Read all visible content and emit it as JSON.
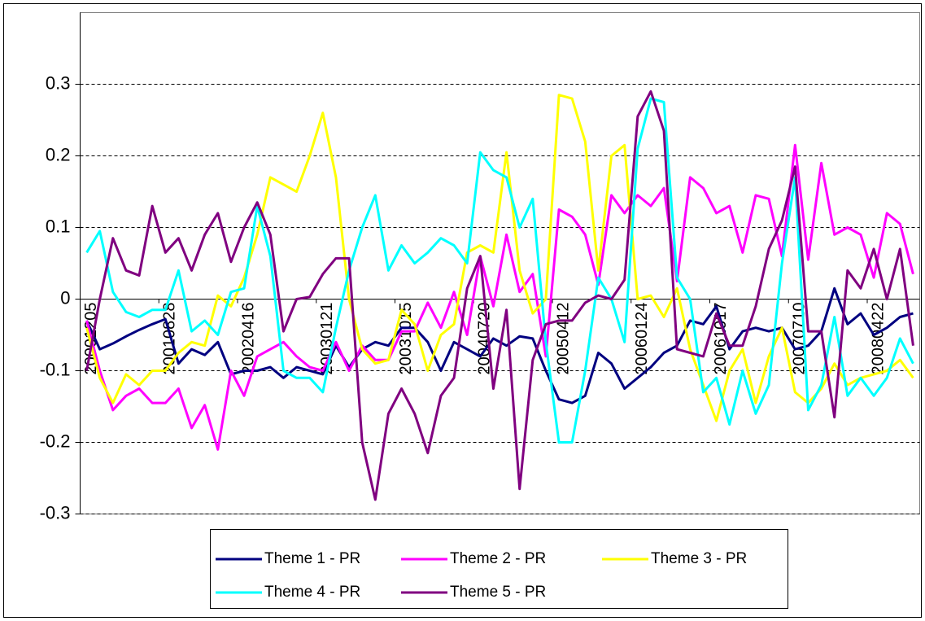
{
  "chart_data": {
    "type": "line",
    "categories": [
      "20001205",
      null,
      null,
      null,
      null,
      null,
      "20010828",
      null,
      null,
      null,
      null,
      null,
      "20020416",
      null,
      null,
      null,
      null,
      null,
      "20030121",
      null,
      null,
      null,
      null,
      null,
      "20031015",
      null,
      null,
      null,
      null,
      null,
      "20040720",
      null,
      null,
      null,
      null,
      null,
      "20050412",
      null,
      null,
      null,
      null,
      null,
      "20060124",
      null,
      null,
      null,
      null,
      null,
      "20061017",
      null,
      null,
      null,
      null,
      null,
      "20070710",
      null,
      null,
      null,
      null,
      null,
      "20080422",
      null,
      null,
      null
    ],
    "series": [
      {
        "name": "Theme 1 - PR",
        "color": "#000080",
        "values": [
          -0.03,
          -0.07,
          -0.062,
          -0.052,
          -0.043,
          -0.035,
          -0.028,
          -0.09,
          -0.07,
          -0.078,
          -0.06,
          -0.105,
          -0.1,
          -0.1,
          -0.095,
          -0.11,
          -0.095,
          -0.1,
          -0.105,
          -0.065,
          -0.095,
          -0.07,
          -0.06,
          -0.065,
          -0.04,
          -0.04,
          -0.06,
          -0.1,
          -0.06,
          -0.07,
          -0.08,
          -0.055,
          -0.065,
          -0.052,
          -0.055,
          -0.1,
          -0.14,
          -0.145,
          -0.135,
          -0.075,
          -0.09,
          -0.125,
          -0.11,
          -0.095,
          -0.075,
          -0.065,
          -0.03,
          -0.035,
          -0.01,
          -0.07,
          -0.045,
          -0.04,
          -0.045,
          -0.04,
          -0.07,
          -0.065,
          -0.045,
          0.015,
          -0.035,
          -0.02,
          -0.05,
          -0.04,
          -0.025,
          -0.02
        ]
      },
      {
        "name": "Theme 2 - PR",
        "color": "#ff00ff",
        "values": [
          -0.03,
          -0.1,
          -0.155,
          -0.135,
          -0.125,
          -0.145,
          -0.145,
          -0.125,
          -0.18,
          -0.148,
          -0.21,
          -0.1,
          -0.135,
          -0.08,
          -0.07,
          -0.06,
          -0.08,
          -0.095,
          -0.1,
          -0.06,
          -0.1,
          -0.065,
          -0.085,
          -0.085,
          -0.045,
          -0.045,
          -0.005,
          -0.04,
          0.01,
          -0.05,
          0.06,
          -0.01,
          0.09,
          0.01,
          0.035,
          -0.08,
          0.125,
          0.115,
          0.09,
          0.02,
          0.145,
          0.12,
          0.145,
          0.13,
          0.155,
          0.025,
          0.17,
          0.155,
          0.12,
          0.13,
          0.065,
          0.145,
          0.14,
          0.06,
          0.215,
          0.055,
          0.19,
          0.09,
          0.1,
          0.09,
          0.03,
          0.12,
          0.105,
          0.035
        ]
      },
      {
        "name": "Theme 3 - PR",
        "color": "#ffff00",
        "values": [
          -0.04,
          -0.11,
          -0.145,
          -0.105,
          -0.12,
          -0.1,
          -0.1,
          -0.075,
          -0.06,
          -0.065,
          0.005,
          -0.01,
          0.03,
          0.09,
          0.17,
          0.16,
          0.15,
          0.2,
          0.26,
          0.17,
          0.0,
          -0.07,
          -0.09,
          -0.085,
          -0.015,
          -0.035,
          -0.1,
          -0.05,
          -0.035,
          0.065,
          0.075,
          0.065,
          0.205,
          0.04,
          -0.02,
          0.0,
          0.285,
          0.28,
          0.22,
          0.04,
          0.2,
          0.215,
          0.0,
          0.005,
          -0.025,
          0.015,
          -0.07,
          -0.12,
          -0.17,
          -0.1,
          -0.07,
          -0.145,
          -0.08,
          -0.04,
          -0.13,
          -0.145,
          -0.125,
          -0.09,
          -0.12,
          -0.11,
          -0.105,
          -0.1,
          -0.085,
          -0.11
        ]
      },
      {
        "name": "Theme 4 - PR",
        "color": "#00ffff",
        "values": [
          0.065,
          0.095,
          0.01,
          -0.018,
          -0.025,
          -0.015,
          -0.015,
          0.04,
          -0.045,
          -0.03,
          -0.05,
          0.01,
          0.015,
          0.13,
          0.06,
          -0.1,
          -0.11,
          -0.11,
          -0.13,
          -0.04,
          0.04,
          0.1,
          0.145,
          0.04,
          0.075,
          0.05,
          0.065,
          0.085,
          0.075,
          0.05,
          0.205,
          0.18,
          0.17,
          0.1,
          0.14,
          -0.06,
          -0.2,
          -0.2,
          -0.1,
          0.03,
          0.0,
          -0.06,
          0.21,
          0.28,
          0.275,
          0.03,
          0.0,
          -0.13,
          -0.11,
          -0.175,
          -0.1,
          -0.16,
          -0.12,
          0.05,
          0.17,
          -0.155,
          -0.12,
          -0.025,
          -0.135,
          -0.11,
          -0.135,
          -0.11,
          -0.055,
          -0.09
        ]
      },
      {
        "name": "Theme 5 - PR",
        "color": "#800080",
        "values": [
          -0.1,
          0.0,
          0.085,
          0.04,
          0.033,
          0.13,
          0.065,
          0.085,
          0.04,
          0.09,
          0.12,
          0.052,
          0.1,
          0.135,
          0.09,
          -0.045,
          0.0,
          0.003,
          0.035,
          0.057,
          0.057,
          -0.2,
          -0.28,
          -0.16,
          -0.125,
          -0.16,
          -0.215,
          -0.135,
          -0.11,
          0.015,
          0.06,
          -0.125,
          -0.015,
          -0.265,
          -0.085,
          -0.035,
          -0.03,
          -0.03,
          -0.005,
          0.005,
          0.0,
          0.027,
          0.255,
          0.29,
          0.235,
          -0.07,
          -0.075,
          -0.08,
          -0.02,
          -0.065,
          -0.065,
          -0.01,
          0.07,
          0.11,
          0.185,
          -0.045,
          -0.045,
          -0.165,
          0.04,
          0.015,
          0.07,
          0.0,
          0.07,
          -0.065
        ]
      }
    ],
    "ylim": [
      -0.3,
      0.4
    ],
    "yticks": [
      -0.3,
      -0.2,
      -0.1,
      0,
      0.1,
      0.2,
      0.3
    ],
    "grid": true,
    "legend": "bottom"
  }
}
